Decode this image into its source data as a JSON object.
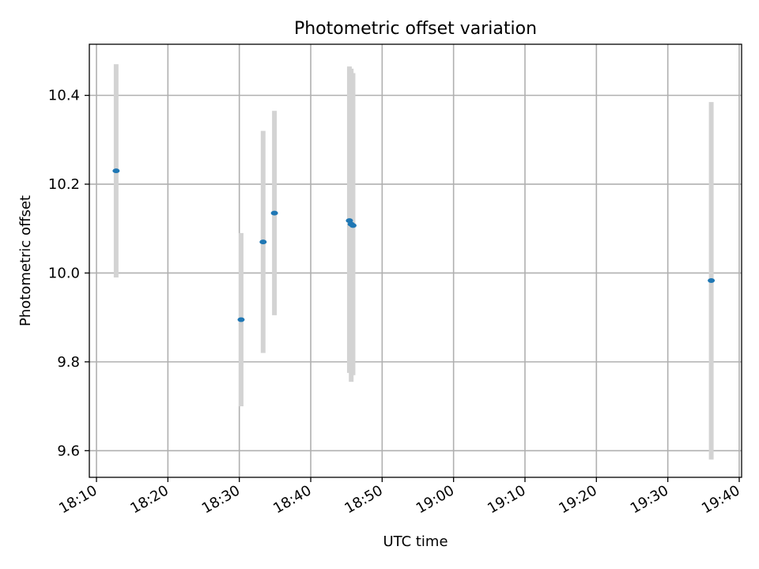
{
  "chart_data": {
    "type": "scatter",
    "title": "Photometric offset variation",
    "xlabel": "UTC time",
    "ylabel": "Photometric offset",
    "xlim": [
      "18:09:00",
      "19:40:20"
    ],
    "ylim": [
      9.54,
      10.515
    ],
    "xticks": [
      "18:10",
      "18:20",
      "18:30",
      "18:40",
      "18:50",
      "19:00",
      "19:10",
      "19:20",
      "19:30",
      "19:40"
    ],
    "yticks": [
      9.6,
      9.8,
      10.0,
      10.2,
      10.4
    ],
    "ytick_labels": [
      "9.6",
      "9.8",
      "10.0",
      "10.2",
      "10.4"
    ],
    "grid": true,
    "point_color": "#1f77b4",
    "errorbar_color": "#d3d3d3",
    "points": [
      {
        "x": "18:12:45",
        "y": 10.23,
        "low": 9.99,
        "high": 10.47
      },
      {
        "x": "18:30:15",
        "y": 9.895,
        "low": 9.7,
        "high": 10.09
      },
      {
        "x": "18:33:20",
        "y": 10.07,
        "low": 9.82,
        "high": 10.32
      },
      {
        "x": "18:34:55",
        "y": 10.135,
        "low": 9.905,
        "high": 10.365
      },
      {
        "x": "18:45:25",
        "y": 10.118,
        "low": 9.775,
        "high": 10.465
      },
      {
        "x": "18:45:40",
        "y": 10.11,
        "low": 9.755,
        "high": 10.46
      },
      {
        "x": "18:45:55",
        "y": 10.107,
        "low": 9.77,
        "high": 10.45
      },
      {
        "x": "19:36:05",
        "y": 9.983,
        "low": 9.58,
        "high": 10.385
      }
    ]
  }
}
